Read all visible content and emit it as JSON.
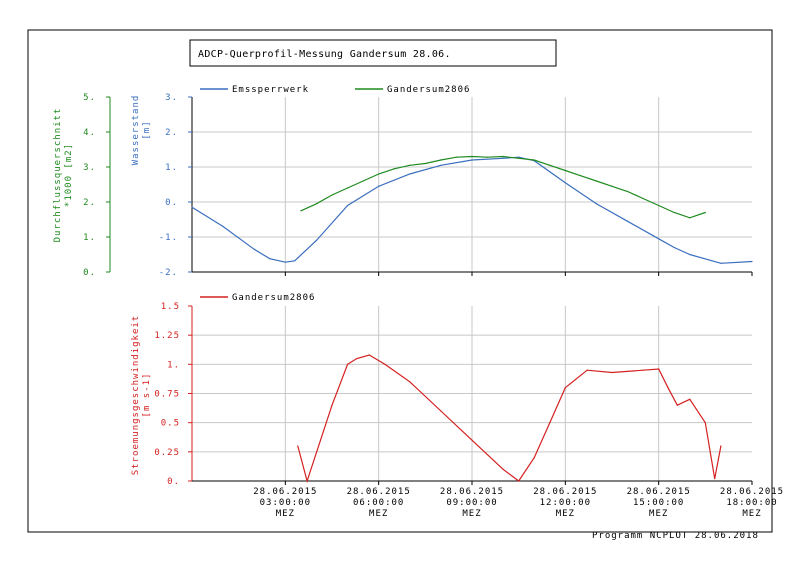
{
  "title": "ADCP-Querprofil-Messung  Gandersum  28.06.",
  "footer": "Programm NCPLOT  28.06.2018",
  "x_ticks": [
    {
      "date": "28.06.2015",
      "time": "03:00:00",
      "unit": "MEZ"
    },
    {
      "date": "28.06.2015",
      "time": "06:00:00",
      "unit": "MEZ"
    },
    {
      "date": "28.06.2015",
      "time": "09:00:00",
      "unit": "MEZ"
    },
    {
      "date": "28.06.2015",
      "time": "12:00:00",
      "unit": "MEZ"
    },
    {
      "date": "28.06.2015",
      "time": "15:00:00",
      "unit": "MEZ"
    },
    {
      "date": "28.06.2015",
      "time": "18:00:00",
      "unit": "MEZ"
    }
  ],
  "colors": {
    "blue": "#3a6ebf",
    "green": "#1f8a1f",
    "red": "#d42020"
  },
  "chart_data": [
    {
      "type": "line",
      "xlim_hours": [
        0,
        18
      ],
      "left_axis_label": "Durchflussquerschnitt *1000 [m2]",
      "left_axis_label_lines": [
        "Durchflussquerschnitt",
        "*1000 [m2]"
      ],
      "left_ticks": [
        "0.",
        "1.",
        "2.",
        "3.",
        "4.",
        "5."
      ],
      "left_ylim": [
        0,
        5
      ],
      "right_axis_label": "Wasserstand [m]",
      "right_axis_label_lines": [
        "Wasserstand",
        "[m]"
      ],
      "right_ticks": [
        "-2.",
        "-1.",
        "0.",
        "1.",
        "2.",
        "3."
      ],
      "right_ylim": [
        -2,
        3
      ],
      "grid": true,
      "legend_placement": "top",
      "series": [
        {
          "name": "Emssperrwerk",
          "axis": "Wasserstand",
          "color": "#3a6ebf",
          "x_hours": [
            0,
            1,
            2,
            2.5,
            3,
            3.3,
            4,
            5,
            6,
            7,
            8,
            9,
            10,
            10.5,
            11,
            12,
            13,
            14,
            15,
            15.5,
            16,
            17,
            18
          ],
          "y": [
            -0.15,
            -0.7,
            -1.35,
            -1.62,
            -1.72,
            -1.68,
            -1.1,
            -0.1,
            0.45,
            0.8,
            1.05,
            1.2,
            1.25,
            1.28,
            1.18,
            0.55,
            -0.05,
            -0.55,
            -1.05,
            -1.3,
            -1.5,
            -1.75,
            -1.7
          ]
        },
        {
          "name": "Gandersum2806",
          "axis": "Wasserstand",
          "color": "#1f8a1f",
          "x_hours": [
            3.5,
            4,
            4.5,
            5,
            5.5,
            6,
            6.5,
            7,
            7.5,
            8,
            8.5,
            9,
            9.5,
            10,
            10.5,
            11,
            11.5,
            12,
            12.5,
            13,
            13.5,
            14,
            14.5,
            15,
            15.5,
            16,
            16.5
          ],
          "y": [
            -0.25,
            -0.05,
            0.2,
            0.4,
            0.6,
            0.8,
            0.95,
            1.05,
            1.1,
            1.2,
            1.28,
            1.3,
            1.28,
            1.3,
            1.25,
            1.2,
            1.05,
            0.9,
            0.75,
            0.6,
            0.45,
            0.3,
            0.1,
            -0.1,
            -0.3,
            -0.45,
            -0.3
          ]
        }
      ]
    },
    {
      "type": "line",
      "xlim_hours": [
        0,
        18
      ],
      "ylabel": "Stroemungsgeschwindigkeit [m s-1]",
      "ylabel_lines": [
        "Stroemungsgeschwindigkeit",
        "[m s-1]"
      ],
      "y_ticks": [
        "0.",
        "0.25",
        "0.5",
        "0.75",
        "1.",
        "1.25",
        "1.5"
      ],
      "ylim": [
        0,
        1.5
      ],
      "grid": true,
      "legend_placement": "top",
      "series": [
        {
          "name": "Gandersum2806",
          "color": "#d42020",
          "x_hours": [
            3.4,
            3.7,
            4.5,
            5,
            5.3,
            5.7,
            6.2,
            7,
            8,
            9,
            10,
            10.5,
            11,
            11.5,
            12,
            12.7,
            13.5,
            14.5,
            15,
            15.3,
            15.6,
            16,
            16.5,
            16.8,
            17
          ],
          "y": [
            0.3,
            0.0,
            0.65,
            1.0,
            1.05,
            1.08,
            1.0,
            0.85,
            0.6,
            0.35,
            0.1,
            0.0,
            0.2,
            0.5,
            0.8,
            0.95,
            0.93,
            0.95,
            0.96,
            0.8,
            0.65,
            0.7,
            0.5,
            0.02,
            0.3
          ]
        }
      ]
    }
  ]
}
